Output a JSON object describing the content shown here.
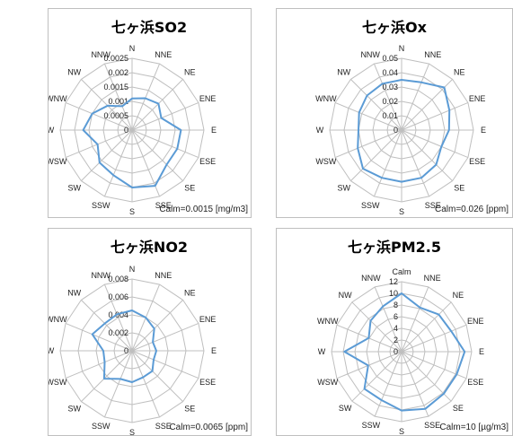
{
  "colors": {
    "series": "#5b9bd5",
    "grid": "#bfbfbf",
    "text": "#222222"
  },
  "chart_data": [
    {
      "type": "radar",
      "title": "七ヶ浜SO2",
      "note": "Calm=0.0015 [mg/m3]",
      "directions": [
        "N",
        "NNE",
        "NE",
        "ENE",
        "E",
        "ESE",
        "SE",
        "SSE",
        "S",
        "SSW",
        "SW",
        "WSW",
        "W",
        "WNW",
        "NW",
        "NNW"
      ],
      "ticks": [
        "0",
        "0.0005",
        "0.001",
        "0.0015",
        "0.002",
        "0.0025"
      ],
      "rmax": 0.0025,
      "values": [
        0.0011,
        0.0012,
        0.0013,
        0.0011,
        0.0017,
        0.0017,
        0.0017,
        0.0021,
        0.002,
        0.0017,
        0.0016,
        0.0013,
        0.0017,
        0.0015,
        0.0012,
        0.0009
      ],
      "grid": true
    },
    {
      "type": "radar",
      "title": "七ヶ浜Ox",
      "note": "Calm=0.026 [ppm]",
      "directions": [
        "N",
        "NNE",
        "NE",
        "ENE",
        "E",
        "ESE",
        "SE",
        "SSE",
        "S",
        "SSW",
        "SW",
        "WSW",
        "W",
        "WNW",
        "NW",
        "NNW"
      ],
      "ticks": [
        "0",
        "0.01",
        "0.02",
        "0.03",
        "0.04",
        "0.05"
      ],
      "rmax": 0.05,
      "values": [
        0.035,
        0.036,
        0.042,
        0.036,
        0.033,
        0.03,
        0.034,
        0.036,
        0.036,
        0.036,
        0.038,
        0.033,
        0.03,
        0.032,
        0.034,
        0.035
      ],
      "grid": true
    },
    {
      "type": "radar",
      "title": "七ヶ浜NO2",
      "note": "Calm=0.0065 [ppm]",
      "directions": [
        "N",
        "NNE",
        "NE",
        "ENE",
        "E",
        "ESE",
        "SE",
        "SSE",
        "S",
        "SSW",
        "SW",
        "WSW",
        "W",
        "WNW",
        "NW",
        "NNW"
      ],
      "ticks": [
        "0",
        "0.002",
        "0.004",
        "0.006",
        "0.008"
      ],
      "rmax": 0.008,
      "values": [
        0.0045,
        0.004,
        0.0035,
        0.0025,
        0.0027,
        0.0026,
        0.0032,
        0.0032,
        0.0035,
        0.0034,
        0.0044,
        0.0033,
        0.0032,
        0.0048,
        0.0043,
        0.0044
      ],
      "grid": true
    },
    {
      "type": "radar",
      "title": "七ヶ浜PM2.5",
      "note": "Calm=10 [µg/m3]",
      "directions": [
        "Calm",
        "NNE",
        "NE",
        "ENE",
        "E",
        "ESE",
        "SE",
        "SSE",
        "S",
        "SSW",
        "SW",
        "WSW",
        "W",
        "WNW",
        "NW",
        "NNW"
      ],
      "ticks": [
        "0",
        "2",
        "4",
        "6",
        "8",
        "10",
        "12"
      ],
      "rmax": 12,
      "values": [
        10,
        8.2,
        9,
        9.2,
        10.8,
        10.2,
        10.2,
        10.6,
        10.1,
        9,
        9,
        6.2,
        9.8,
        6.1,
        7.5,
        8.4
      ],
      "grid": true
    }
  ]
}
